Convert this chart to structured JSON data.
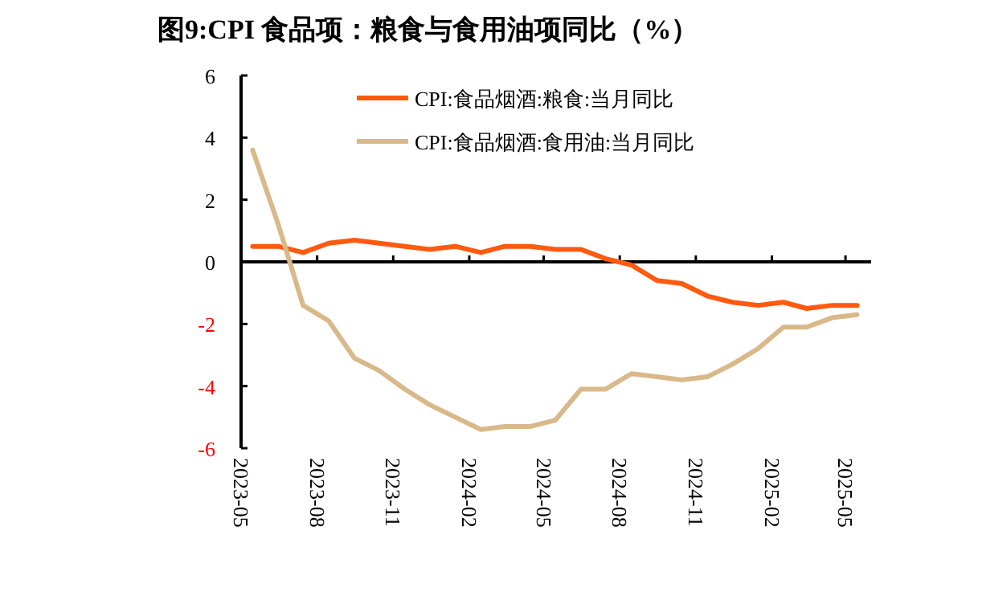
{
  "chart_data": {
    "type": "line",
    "title": "图9:CPI 食品项：粮食与食用油项同比（%）",
    "x": [
      "2023-05-15",
      "2023-06-15",
      "2023-07-15",
      "2023-08-15",
      "2023-09-15",
      "2023-10-15",
      "2023-11-15",
      "2023-12-15",
      "2024-01-15",
      "2024-02-15",
      "2024-03-15",
      "2024-04-15",
      "2024-05-15",
      "2024-06-15",
      "2024-07-15",
      "2024-08-15",
      "2024-09-15",
      "2024-10-15",
      "2024-11-15",
      "2024-12-15",
      "2025-01-15",
      "2025-02-15",
      "2025-03-15",
      "2025-04-15",
      "2025-05-15"
    ],
    "series": [
      {
        "name": "CPI:食品烟酒:粮食:当月同比",
        "color": "#ff5a0f",
        "values": [
          0.5,
          0.5,
          0.3,
          0.6,
          0.7,
          0.6,
          0.5,
          0.4,
          0.5,
          0.3,
          0.5,
          0.5,
          0.4,
          0.4,
          0.1,
          -0.1,
          -0.6,
          -0.7,
          -1.1,
          -1.3,
          -1.4,
          -1.3,
          -1.5,
          -1.4,
          -1.4
        ]
      },
      {
        "name": "CPI:食品烟酒:食用油:当月同比",
        "color": "#d9b98a",
        "values": [
          3.6,
          1.2,
          -1.4,
          -1.9,
          -3.1,
          -3.5,
          -4.1,
          -4.6,
          -5.0,
          -5.4,
          -5.3,
          -5.3,
          -5.1,
          -4.1,
          -4.1,
          -3.6,
          -3.7,
          -3.8,
          -3.7,
          -3.3,
          -2.8,
          -2.1,
          -2.1,
          -1.8,
          -1.7
        ]
      }
    ],
    "xlim": [
      "2023-05",
      "2025-06"
    ],
    "xticks": [
      "2023-05",
      "2023-08",
      "2023-11",
      "2024-02",
      "2024-05",
      "2024-08",
      "2024-11",
      "2025-02",
      "2025-05"
    ],
    "ylim": [
      -6,
      6
    ],
    "yticks": [
      -6,
      -4,
      -2,
      0,
      2,
      4,
      6
    ],
    "legend": "top"
  }
}
